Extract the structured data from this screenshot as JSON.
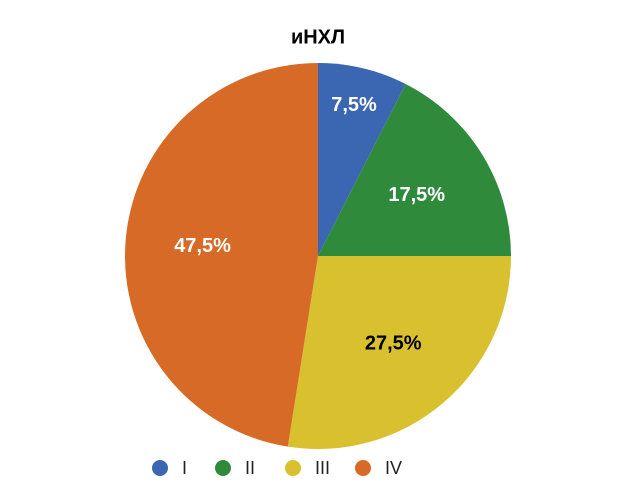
{
  "chart_data": {
    "type": "pie",
    "title": "иНХЛ",
    "categories": [
      "I",
      "II",
      "III",
      "IV"
    ],
    "values": [
      7.5,
      17.5,
      27.5,
      47.5
    ],
    "value_labels": [
      "7,5%",
      "17,5%",
      "27,5%",
      "47,5%"
    ],
    "colors": [
      "#3a66b2",
      "#2f8b3b",
      "#d8c02f",
      "#d66a26"
    ],
    "legend": "bottom"
  }
}
